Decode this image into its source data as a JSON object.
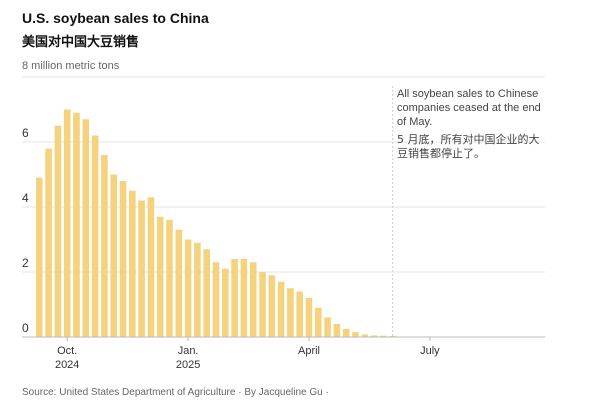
{
  "header": {
    "title": "U.S. soybean sales to China",
    "subtitle": "美国对中国大豆销售",
    "unit_label": "8 million metric tons"
  },
  "annotation": {
    "en": "All soybean sales to Chinese companies ceased at the end of May.",
    "zh": "5 月底，所有对中国企业的大豆销售都停止了。"
  },
  "footer": {
    "source": "Source: United States Department of Agriculture · By Jacqueline Gu ·"
  },
  "colors": {
    "bar": "#f5d27e",
    "grid": "#e6e6e6",
    "axis": "#bbbbbb",
    "cutoff": "#cccccc"
  },
  "chart_data": {
    "type": "bar",
    "title": "U.S. soybean sales to China",
    "ylabel": "million metric tons",
    "ylim": [
      0,
      8
    ],
    "yticks": [
      0,
      2,
      4,
      6
    ],
    "ytick_labels": [
      "0",
      "2",
      "4",
      "6"
    ],
    "x_ticks": [
      {
        "label": "Oct.",
        "sublabel": "2024",
        "at_bar": 3
      },
      {
        "label": "Jan.",
        "sublabel": "2025",
        "at_bar": 16
      },
      {
        "label": "April",
        "sublabel": "",
        "at_bar": 29
      },
      {
        "label": "July",
        "sublabel": "",
        "at_bar": 42
      }
    ],
    "cutoff_at_bar": 38,
    "cutoff_note": "end of May",
    "values": [
      4.9,
      5.8,
      6.5,
      7.0,
      6.9,
      6.7,
      6.2,
      5.6,
      5.0,
      4.8,
      4.5,
      4.2,
      4.3,
      3.7,
      3.6,
      3.3,
      3.0,
      2.9,
      2.7,
      2.3,
      2.1,
      2.4,
      2.4,
      2.3,
      2.0,
      1.9,
      1.7,
      1.5,
      1.4,
      1.2,
      0.9,
      0.6,
      0.4,
      0.25,
      0.15,
      0.08,
      0.05,
      0.04,
      0.03
    ]
  }
}
